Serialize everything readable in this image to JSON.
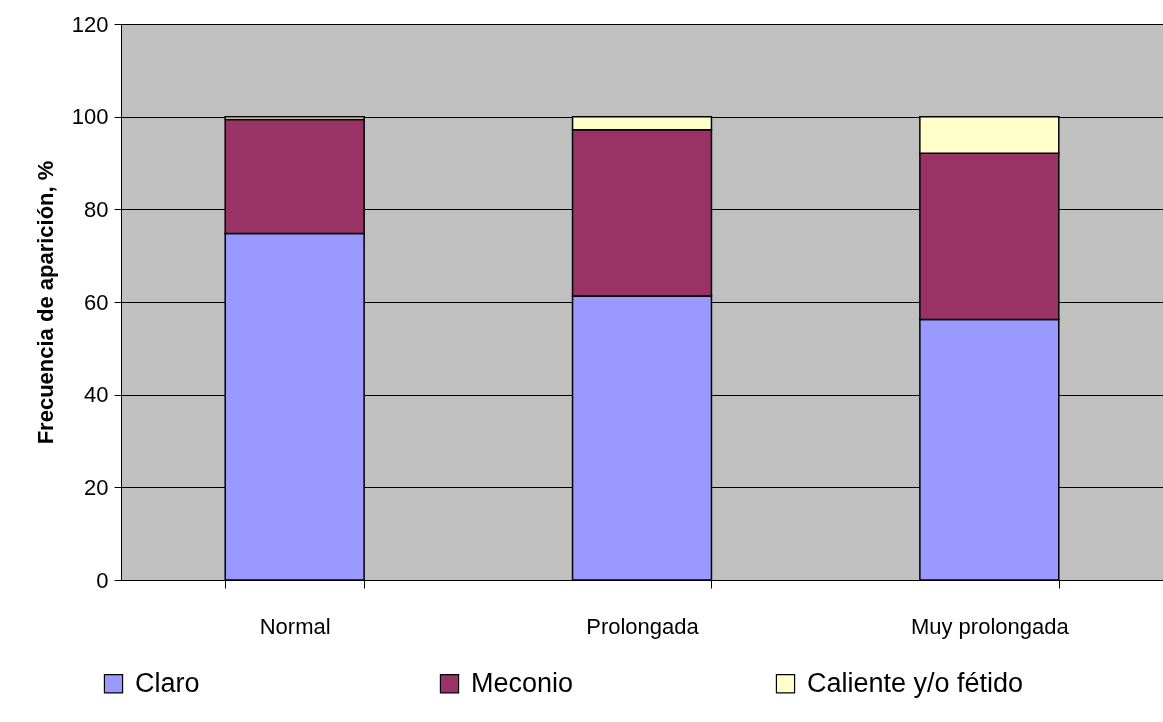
{
  "chart_data": {
    "type": "bar",
    "stacked": true,
    "ylabel": "Frecuencia de aparición, %",
    "categories": [
      "Normal",
      "Prolongada",
      "Muy prolongada"
    ],
    "series": [
      {
        "name": "Claro",
        "color": "#9999ff",
        "values": [
          74.8,
          61.3,
          56.2
        ]
      },
      {
        "name": "Meconio",
        "color": "#993366",
        "values": [
          24.6,
          35.9,
          35.9
        ]
      },
      {
        "name": "Caliente y/o fétido",
        "color": "#ffffcc",
        "values": [
          0.6,
          2.8,
          7.9
        ]
      }
    ],
    "ylim": [
      0,
      120
    ],
    "yticks": [
      0,
      20,
      40,
      60,
      80,
      100,
      120
    ],
    "grid": "y",
    "legend": "bottom"
  }
}
